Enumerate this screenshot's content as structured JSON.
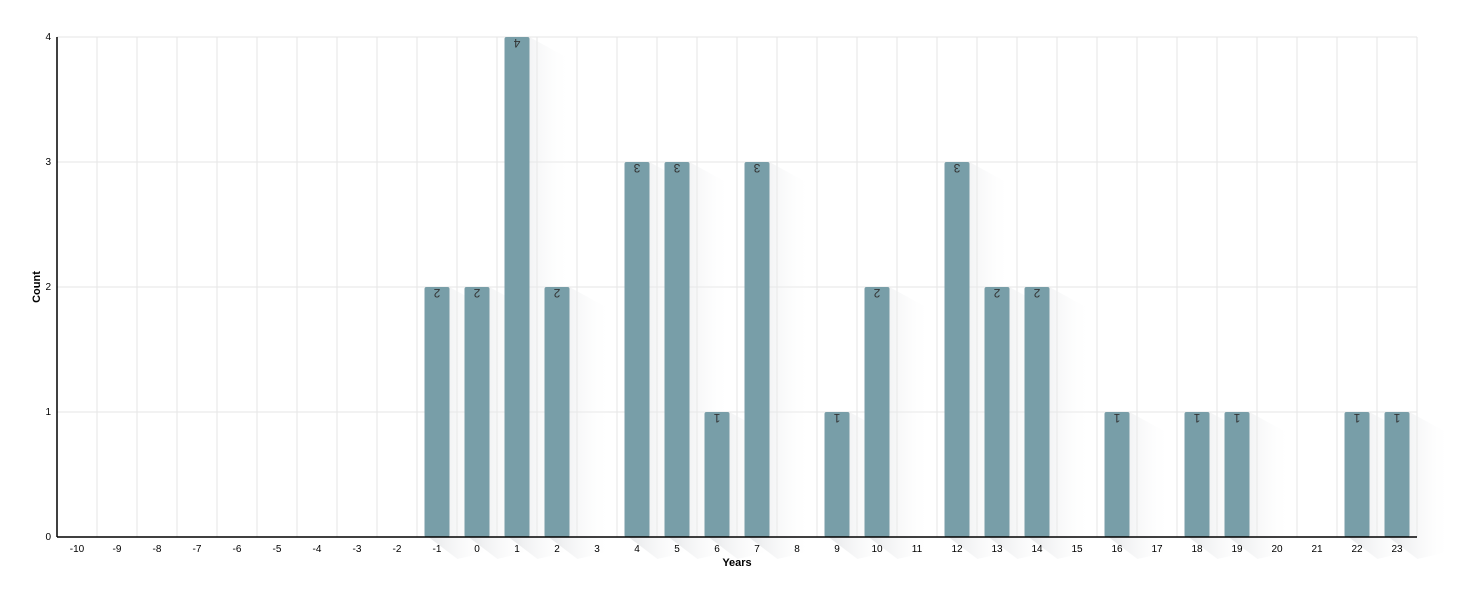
{
  "chart_data": {
    "type": "bar",
    "title": "",
    "xlabel": "Years",
    "ylabel": "Count",
    "categories": [
      "-10",
      "-9",
      "-8",
      "-7",
      "-6",
      "-5",
      "-4",
      "-3",
      "-2",
      "-1",
      "0",
      "1",
      "2",
      "3",
      "4",
      "5",
      "6",
      "7",
      "8",
      "9",
      "10",
      "11",
      "12",
      "13",
      "14",
      "15",
      "16",
      "17",
      "18",
      "19",
      "20",
      "21",
      "22",
      "23"
    ],
    "values": [
      0,
      0,
      0,
      0,
      0,
      0,
      0,
      0,
      0,
      2,
      2,
      4,
      2,
      0,
      3,
      3,
      1,
      3,
      0,
      1,
      2,
      0,
      3,
      2,
      2,
      0,
      1,
      0,
      1,
      1,
      0,
      0,
      1,
      1
    ],
    "yticks": [
      "0",
      "1",
      "2",
      "3",
      "4"
    ],
    "ylim": [
      0,
      4
    ],
    "grid": true,
    "bar_color": "#789ea8",
    "data_labels": "rotated-inside-top"
  }
}
